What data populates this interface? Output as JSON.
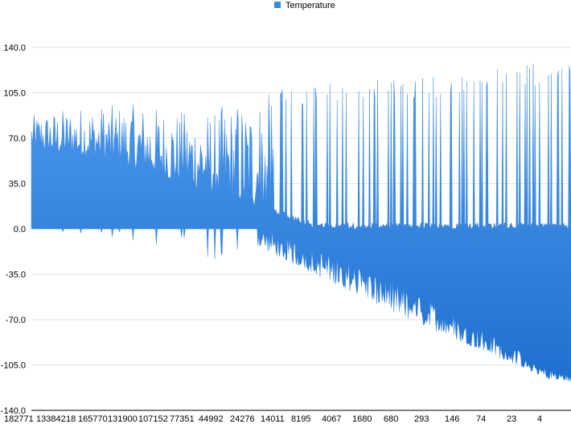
{
  "chart_data": {
    "type": "area",
    "legend": {
      "entries": [
        "Temperature"
      ],
      "placement": "top-center"
    },
    "series": [
      {
        "name": "Temperature",
        "color": "#2f80dc"
      }
    ],
    "ylim": [
      -140,
      140
    ],
    "y_ticks": [
      "140.0",
      "105.0",
      "70.0",
      "35.0",
      "0.0",
      "-35.0",
      "-70.0",
      "-105.0",
      "-140.0"
    ],
    "x_tick_labels": [
      "182771",
      "133842",
      "18",
      "165770",
      "131900",
      "107152",
      "77351",
      "44992",
      "24276",
      "14011",
      "8195",
      "4067",
      "1680",
      "680",
      "293",
      "146",
      "74",
      "23",
      "4"
    ],
    "envelope": {
      "description_points_index_fraction": [
        0,
        0.1,
        0.2,
        0.3,
        0.4,
        0.5,
        0.6,
        0.7,
        0.8,
        0.9,
        0.95,
        1.0
      ],
      "upper": [
        88,
        95,
        96,
        90,
        100,
        112,
        113,
        117,
        122,
        128,
        128,
        133
      ],
      "baseline_upper": [
        62,
        55,
        45,
        32,
        18,
        4,
        -10,
        -30,
        -55,
        -85,
        -100,
        -110
      ],
      "lower": [
        0,
        0,
        0,
        0,
        -10,
        -30,
        -50,
        -70,
        -88,
        -105,
        -115,
        -118
      ]
    }
  }
}
